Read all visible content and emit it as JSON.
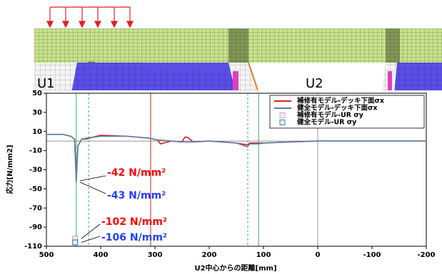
{
  "diagram": {
    "labels": [
      "U1",
      "U2"
    ]
  },
  "chart_data": {
    "type": "line",
    "x_label": "U2中心からの距離[mm]",
    "y_label": "応力[N/mm2]",
    "xlim": [
      500,
      -200
    ],
    "xticks": [
      500,
      400,
      300,
      200,
      100,
      0,
      -100,
      -200
    ],
    "ylim": [
      -110,
      50
    ],
    "yticks": [
      50,
      30,
      10,
      -10,
      -30,
      -50,
      -70,
      -90,
      -110
    ],
    "legend": "upper right",
    "x": [
      500,
      470,
      455,
      448,
      445,
      442,
      435,
      425,
      415,
      400,
      350,
      310,
      295,
      290,
      270,
      250,
      245,
      240,
      230,
      200,
      150,
      130,
      125,
      120,
      110,
      100,
      50,
      0,
      -50,
      -100,
      -150,
      -200
    ],
    "series": [
      {
        "name": "補修有モデル-デッキ下面σx",
        "color": "#e02020",
        "values": [
          7,
          7,
          5,
          2,
          -42,
          -5,
          2,
          3,
          4,
          6,
          5,
          3,
          1,
          -3,
          0,
          -1,
          4,
          4,
          -1,
          0,
          -2,
          -4,
          -2,
          -2,
          -2,
          -2,
          -1,
          0,
          0,
          0,
          0,
          0
        ]
      },
      {
        "name": "健全モデル-デッキ下面σx",
        "color": "#5a7fa8",
        "values": [
          7,
          7,
          5,
          2,
          -43,
          -5,
          2,
          2,
          4,
          5,
          5,
          3,
          1,
          1,
          0,
          -1,
          -1,
          -1,
          -1,
          0,
          -2,
          -6,
          -3,
          -3,
          -3,
          -2,
          -1,
          0,
          0,
          0,
          0,
          0
        ]
      }
    ],
    "points": [
      {
        "name": "補修有モデル-UR σy",
        "color": "#d8a8a8",
        "x": [
          447
        ],
        "values": [
          -102
        ]
      },
      {
        "name": "健全モデル-UR σy",
        "color": "#2f86c0",
        "x": [
          447
        ],
        "values": [
          -106
        ]
      }
    ],
    "vlines": [
      {
        "x": 445,
        "color": "#2eb85c",
        "dash": false
      },
      {
        "x": 422,
        "color": "#2eb85c",
        "dash": true
      },
      {
        "x": 308,
        "color": "#e02020",
        "dash": false
      },
      {
        "x": 129,
        "color": "#2eb85c",
        "dash": true
      },
      {
        "x": 109,
        "color": "#2eb85c",
        "dash": false
      },
      {
        "x": 0,
        "color": "#999999",
        "dash": false
      }
    ],
    "annotations": [
      {
        "text": "-42 N/mm²",
        "color": "#ff0000"
      },
      {
        "text": "-43 N/mm²",
        "color": "#1f3fff"
      },
      {
        "text": "-102 N/mm²",
        "color": "#ff0000"
      },
      {
        "text": "-106 N/mm²",
        "color": "#1f3fff"
      }
    ]
  }
}
